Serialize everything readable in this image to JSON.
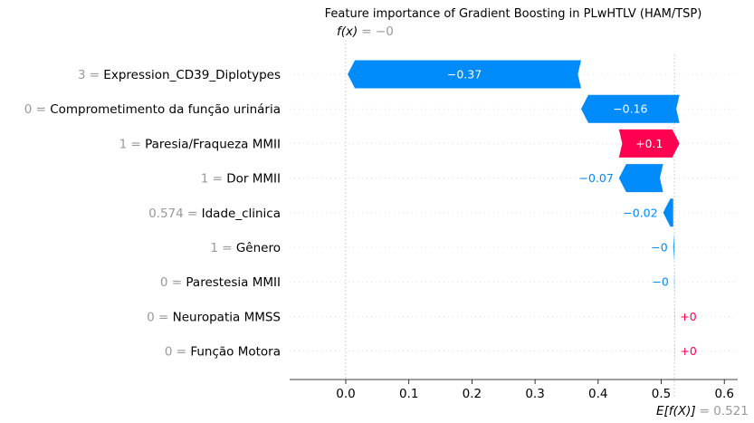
{
  "chart_data": {
    "type": "bar",
    "title": "Feature importance of Gradient Boosting in PLwHTLV (HAM/TSP)",
    "fx_label": "f(x)",
    "fx_value": "= −0",
    "fx": 0.0,
    "ex_label": "E[f(X)]",
    "ex_value": "= 0.521",
    "base_value": 0.521,
    "xlim": [
      -0.09,
      0.62
    ],
    "xticks": [
      0.0,
      0.1,
      0.2,
      0.3,
      0.4,
      0.5,
      0.6
    ],
    "xtick_labels": [
      "0.0",
      "0.1",
      "0.2",
      "0.3",
      "0.4",
      "0.5",
      "0.6"
    ],
    "features": [
      {
        "value": "3",
        "name": "Expression_CD39_Diplotypes",
        "contribution": -0.37,
        "label": "−0.37",
        "start": 0.373,
        "end": 0.003
      },
      {
        "value": "0",
        "name": "Comprometimento da função urinária",
        "contribution": -0.16,
        "label": "−0.16",
        "start": 0.529,
        "end": 0.373
      },
      {
        "value": "1",
        "name": "Paresia/Fraqueza MMII",
        "contribution": 0.1,
        "label": "+0.1",
        "start": 0.433,
        "end": 0.529
      },
      {
        "value": "1",
        "name": "Dor MMII",
        "contribution": -0.07,
        "label": "−0.07",
        "start": 0.503,
        "end": 0.433
      },
      {
        "value": "0.574",
        "name": "Idade_clinica",
        "contribution": -0.02,
        "label": "−0.02",
        "start": 0.519,
        "end": 0.503
      },
      {
        "value": "1",
        "name": "Gênero",
        "contribution": -0.0,
        "label": "−0",
        "start": 0.5205,
        "end": 0.519
      },
      {
        "value": "0",
        "name": "Parestesia MMII",
        "contribution": -0.0,
        "label": "−0",
        "start": 0.521,
        "end": 0.5205
      },
      {
        "value": "0",
        "name": "Neuropatia MMSS",
        "contribution": 0.0,
        "label": "+0",
        "start": 0.521,
        "end": 0.5212
      },
      {
        "value": "0",
        "name": "Função Motora",
        "contribution": 0.0,
        "label": "+0",
        "start": 0.5212,
        "end": 0.5214
      }
    ],
    "colors": {
      "negative": "#008bfb",
      "positive": "#ff0051",
      "muted": "#999999"
    }
  }
}
